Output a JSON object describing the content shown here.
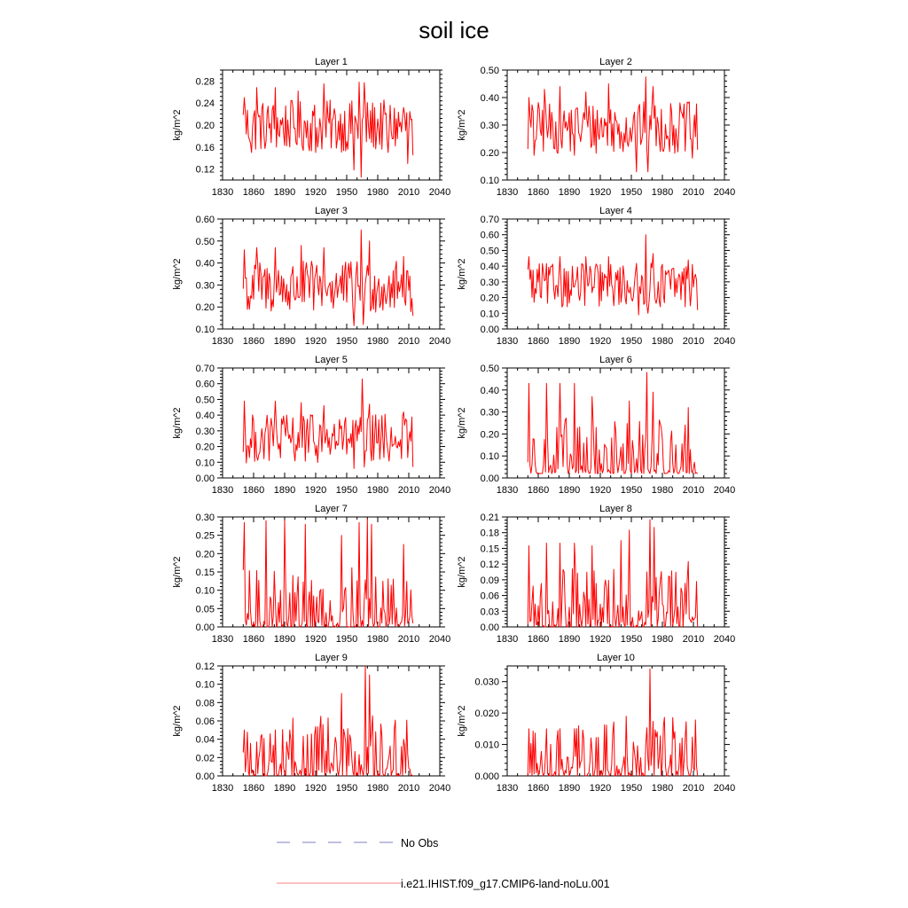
{
  "figure": {
    "title": "soil ice",
    "legend": [
      {
        "label": "No Obs",
        "color": "#7f7fc0",
        "style": "dashed"
      },
      {
        "label": "i.e21.IHIST.f09_g17.CMIP6-land-noLu.001",
        "color": "#ff8080",
        "style": "solid"
      }
    ]
  },
  "chart_data": [
    {
      "type": "line",
      "title": "Layer 1",
      "xlabel": "",
      "ylabel": "kg/m^2",
      "xlim": [
        1830,
        2040
      ],
      "ylim": [
        0.1,
        0.3
      ],
      "xticks": [
        "1830",
        "1860",
        "1890",
        "1920",
        "1950",
        "1980",
        "2010",
        "2040"
      ],
      "yticks": [
        "0.12",
        "0.16",
        "0.20",
        "0.24",
        "0.28"
      ],
      "ytick_values": [
        0.12,
        0.16,
        0.2,
        0.24,
        0.28
      ],
      "series": [
        {
          "color": "#ff0000",
          "summary": {
            "x_start": 1850,
            "x_end": 2014,
            "min": 0.105,
            "max": 0.278,
            "mean": 0.198
          },
          "peaks": [
            [
              1851,
              0.25
            ],
            [
              1858,
              0.15
            ],
            [
              1863,
              0.268
            ],
            [
              1872,
              0.17
            ],
            [
              1881,
              0.268
            ],
            [
              1895,
              0.16
            ],
            [
              1903,
              0.262
            ],
            [
              1920,
              0.15
            ],
            [
              1928,
              0.275
            ],
            [
              1950,
              0.17
            ],
            [
              1957,
              0.118
            ],
            [
              1962,
              0.278
            ],
            [
              1964,
              0.105
            ],
            [
              1967,
              0.277
            ],
            [
              1990,
              0.15
            ],
            [
              2005,
              0.232
            ],
            [
              2009,
              0.13
            ],
            [
              2014,
              0.145
            ]
          ]
        }
      ]
    },
    {
      "type": "line",
      "title": "Layer 2",
      "xlabel": "",
      "ylabel": "kg/m^2",
      "xlim": [
        1830,
        2040
      ],
      "ylim": [
        0.1,
        0.5
      ],
      "xticks": [
        "1830",
        "1860",
        "1890",
        "1920",
        "1950",
        "1980",
        "2010",
        "2040"
      ],
      "yticks": [
        "0.10",
        "0.20",
        "0.30",
        "0.40",
        "0.50"
      ],
      "ytick_values": [
        0.1,
        0.2,
        0.3,
        0.4,
        0.5
      ],
      "series": [
        {
          "color": "#ff0000",
          "summary": {
            "x_start": 1850,
            "x_end": 2014,
            "min": 0.13,
            "max": 0.475,
            "mean": 0.29
          },
          "peaks": [
            [
              1851,
              0.4
            ],
            [
              1856,
              0.19
            ],
            [
              1866,
              0.43
            ],
            [
              1881,
              0.44
            ],
            [
              1895,
              0.19
            ],
            [
              1906,
              0.42
            ],
            [
              1928,
              0.45
            ],
            [
              1955,
              0.13
            ],
            [
              1964,
              0.475
            ],
            [
              1966,
              0.125
            ],
            [
              1971,
              0.44
            ],
            [
              2005,
              0.38
            ],
            [
              2009,
              0.18
            ],
            [
              2014,
              0.21
            ]
          ]
        }
      ]
    },
    {
      "type": "line",
      "title": "Layer 3",
      "xlabel": "",
      "ylabel": "kg/m^2",
      "xlim": [
        1830,
        2040
      ],
      "ylim": [
        0.1,
        0.6
      ],
      "xticks": [
        "1830",
        "1860",
        "1890",
        "1920",
        "1950",
        "1980",
        "2010",
        "2040"
      ],
      "yticks": [
        "0.10",
        "0.20",
        "0.30",
        "0.40",
        "0.50",
        "0.60"
      ],
      "ytick_values": [
        0.1,
        0.2,
        0.3,
        0.4,
        0.5,
        0.6
      ],
      "series": [
        {
          "color": "#ff0000",
          "summary": {
            "x_start": 1850,
            "x_end": 2014,
            "min": 0.115,
            "max": 0.55,
            "mean": 0.29
          },
          "peaks": [
            [
              1851,
              0.46
            ],
            [
              1856,
              0.19
            ],
            [
              1863,
              0.47
            ],
            [
              1881,
              0.47
            ],
            [
              1895,
              0.19
            ],
            [
              1906,
              0.48
            ],
            [
              1928,
              0.47
            ],
            [
              1957,
              0.115
            ],
            [
              1964,
              0.55
            ],
            [
              1966,
              0.12
            ],
            [
              1972,
              0.5
            ],
            [
              2005,
              0.43
            ],
            [
              2014,
              0.16
            ]
          ]
        }
      ]
    },
    {
      "type": "line",
      "title": "Layer 4",
      "xlabel": "",
      "ylabel": "kg/m^2",
      "xlim": [
        1830,
        2040
      ],
      "ylim": [
        0.0,
        0.7
      ],
      "xticks": [
        "1830",
        "1860",
        "1890",
        "1920",
        "1950",
        "1980",
        "2010",
        "2040"
      ],
      "yticks": [
        "0.00",
        "0.10",
        "0.20",
        "0.30",
        "0.40",
        "0.50",
        "0.60",
        "0.70"
      ],
      "ytick_values": [
        0.0,
        0.1,
        0.2,
        0.3,
        0.4,
        0.5,
        0.6,
        0.7
      ],
      "series": [
        {
          "color": "#ff0000",
          "summary": {
            "x_start": 1850,
            "x_end": 2014,
            "min": 0.09,
            "max": 0.6,
            "mean": 0.28
          },
          "peaks": [
            [
              1851,
              0.46
            ],
            [
              1856,
              0.17
            ],
            [
              1881,
              0.46
            ],
            [
              1906,
              0.46
            ],
            [
              1928,
              0.46
            ],
            [
              1957,
              0.09
            ],
            [
              1964,
              0.6
            ],
            [
              1966,
              0.1
            ],
            [
              1971,
              0.48
            ],
            [
              2005,
              0.44
            ],
            [
              2014,
              0.12
            ]
          ]
        }
      ]
    },
    {
      "type": "line",
      "title": "Layer 5",
      "xlabel": "",
      "ylabel": "kg/m^2",
      "xlim": [
        1830,
        2040
      ],
      "ylim": [
        0.0,
        0.7
      ],
      "xticks": [
        "1830",
        "1860",
        "1890",
        "1920",
        "1950",
        "1980",
        "2010",
        "2040"
      ],
      "yticks": [
        "0.00",
        "0.10",
        "0.20",
        "0.30",
        "0.40",
        "0.50",
        "0.60",
        "0.70"
      ],
      "ytick_values": [
        0.0,
        0.1,
        0.2,
        0.3,
        0.4,
        0.5,
        0.6,
        0.7
      ],
      "series": [
        {
          "color": "#ff0000",
          "summary": {
            "x_start": 1850,
            "x_end": 2014,
            "min": 0.06,
            "max": 0.63,
            "mean": 0.25
          },
          "peaks": [
            [
              1851,
              0.49
            ],
            [
              1856,
              0.13
            ],
            [
              1881,
              0.49
            ],
            [
              1906,
              0.48
            ],
            [
              1928,
              0.46
            ],
            [
              1957,
              0.06
            ],
            [
              1965,
              0.63
            ],
            [
              1967,
              0.07
            ],
            [
              1972,
              0.47
            ],
            [
              2005,
              0.42
            ],
            [
              2014,
              0.07
            ]
          ]
        }
      ]
    },
    {
      "type": "line",
      "title": "Layer 6",
      "xlabel": "",
      "ylabel": "kg/m^2",
      "xlim": [
        1830,
        2040
      ],
      "ylim": [
        0.0,
        0.5
      ],
      "xticks": [
        "1830",
        "1860",
        "1890",
        "1920",
        "1950",
        "1980",
        "2010",
        "2040"
      ],
      "yticks": [
        "0.00",
        "0.10",
        "0.20",
        "0.30",
        "0.40",
        "0.50"
      ],
      "ytick_values": [
        0.0,
        0.1,
        0.2,
        0.3,
        0.4,
        0.5
      ],
      "series": [
        {
          "color": "#ff0000",
          "summary": {
            "x_start": 1850,
            "x_end": 2014,
            "min": 0.02,
            "max": 0.48,
            "mean": 0.16
          },
          "peaks": [
            [
              1851,
              0.43
            ],
            [
              1854,
              0.06
            ],
            [
              1868,
              0.43
            ],
            [
              1881,
              0.43
            ],
            [
              1895,
              0.43
            ],
            [
              1912,
              0.37
            ],
            [
              1948,
              0.35
            ],
            [
              1965,
              0.48
            ],
            [
              1967,
              0.03
            ],
            [
              1971,
              0.39
            ],
            [
              2005,
              0.32
            ],
            [
              2014,
              0.02
            ]
          ]
        }
      ]
    },
    {
      "type": "line",
      "title": "Layer 7",
      "xlabel": "",
      "ylabel": "kg/m^2",
      "xlim": [
        1830,
        2040
      ],
      "ylim": [
        0.0,
        0.3
      ],
      "xticks": [
        "1830",
        "1860",
        "1890",
        "1920",
        "1950",
        "1980",
        "2010",
        "2040"
      ],
      "yticks": [
        "0.00",
        "0.05",
        "0.10",
        "0.15",
        "0.20",
        "0.25",
        "0.30"
      ],
      "ytick_values": [
        0.0,
        0.05,
        0.1,
        0.15,
        0.2,
        0.25,
        0.3
      ],
      "series": [
        {
          "color": "#ff0000",
          "summary": {
            "x_start": 1850,
            "x_end": 2014,
            "min": 0.0,
            "max": 0.295,
            "mean": 0.08
          },
          "peaks": [
            [
              1851,
              0.285
            ],
            [
              1855,
              0.02
            ],
            [
              1872,
              0.29
            ],
            [
              1890,
              0.29
            ],
            [
              1910,
              0.28
            ],
            [
              1945,
              0.25
            ],
            [
              1962,
              0.285
            ],
            [
              1970,
              0.295
            ],
            [
              1974,
              0.28
            ],
            [
              2005,
              0.225
            ],
            [
              2014,
              0.01
            ]
          ]
        }
      ]
    },
    {
      "type": "line",
      "title": "Layer 8",
      "xlabel": "",
      "ylabel": "kg/m^2",
      "xlim": [
        1830,
        2040
      ],
      "ylim": [
        0.0,
        0.21
      ],
      "xticks": [
        "1830",
        "1860",
        "1890",
        "1920",
        "1950",
        "1980",
        "2010",
        "2040"
      ],
      "yticks": [
        "0.00",
        "0.03",
        "0.06",
        "0.09",
        "0.12",
        "0.15",
        "0.18",
        "0.21"
      ],
      "ytick_values": [
        0.0,
        0.03,
        0.06,
        0.09,
        0.12,
        0.15,
        0.18,
        0.21
      ],
      "series": [
        {
          "color": "#ff0000",
          "summary": {
            "x_start": 1850,
            "x_end": 2014,
            "min": 0.0,
            "max": 0.205,
            "mean": 0.035
          },
          "peaks": [
            [
              1851,
              0.155
            ],
            [
              1868,
              0.16
            ],
            [
              1881,
              0.16
            ],
            [
              1895,
              0.16
            ],
            [
              1912,
              0.155
            ],
            [
              1940,
              0.165
            ],
            [
              1948,
              0.185
            ],
            [
              1968,
              0.205
            ],
            [
              1972,
              0.19
            ],
            [
              2005,
              0.125
            ],
            [
              2014,
              0.0
            ]
          ]
        }
      ]
    },
    {
      "type": "line",
      "title": "Layer 9",
      "xlabel": "",
      "ylabel": "kg/m^2",
      "xlim": [
        1830,
        2040
      ],
      "ylim": [
        0.0,
        0.12
      ],
      "xticks": [
        "1830",
        "1860",
        "1890",
        "1920",
        "1950",
        "1980",
        "2010",
        "2040"
      ],
      "yticks": [
        "0.00",
        "0.02",
        "0.04",
        "0.06",
        "0.08",
        "0.10",
        "0.12"
      ],
      "ytick_values": [
        0.0,
        0.02,
        0.04,
        0.06,
        0.08,
        0.1,
        0.12
      ],
      "series": [
        {
          "color": "#ff0000",
          "summary": {
            "x_start": 1850,
            "x_end": 2014,
            "min": 0.0,
            "max": 0.12,
            "mean": 0.01
          },
          "peaks": [
            [
              1851,
              0.05
            ],
            [
              1868,
              0.045
            ],
            [
              1881,
              0.05
            ],
            [
              1895,
              0.05
            ],
            [
              1912,
              0.045
            ],
            [
              1945,
              0.09
            ],
            [
              1968,
              0.12
            ],
            [
              1972,
              0.11
            ],
            [
              2005,
              0.04
            ],
            [
              2014,
              0.0
            ]
          ]
        }
      ]
    },
    {
      "type": "line",
      "title": "Layer 10",
      "xlabel": "",
      "ylabel": "kg/m^2",
      "xlim": [
        1830,
        2040
      ],
      "ylim": [
        0.0,
        0.035
      ],
      "xticks": [
        "1830",
        "1860",
        "1890",
        "1920",
        "1950",
        "1980",
        "2010",
        "2040"
      ],
      "yticks": [
        "0.000",
        "0.010",
        "0.020",
        "0.030"
      ],
      "ytick_values": [
        0.0,
        0.01,
        0.02,
        0.03
      ],
      "series": [
        {
          "color": "#ff0000",
          "summary": {
            "x_start": 1850,
            "x_end": 2014,
            "min": 0.0,
            "max": 0.034,
            "mean": 0.002
          },
          "peaks": [
            [
              1851,
              0.015
            ],
            [
              1868,
              0.015
            ],
            [
              1881,
              0.015
            ],
            [
              1895,
              0.015
            ],
            [
              1945,
              0.019
            ],
            [
              1968,
              0.034
            ],
            [
              1975,
              0.014
            ],
            [
              2014,
              0.0
            ]
          ]
        }
      ]
    }
  ]
}
